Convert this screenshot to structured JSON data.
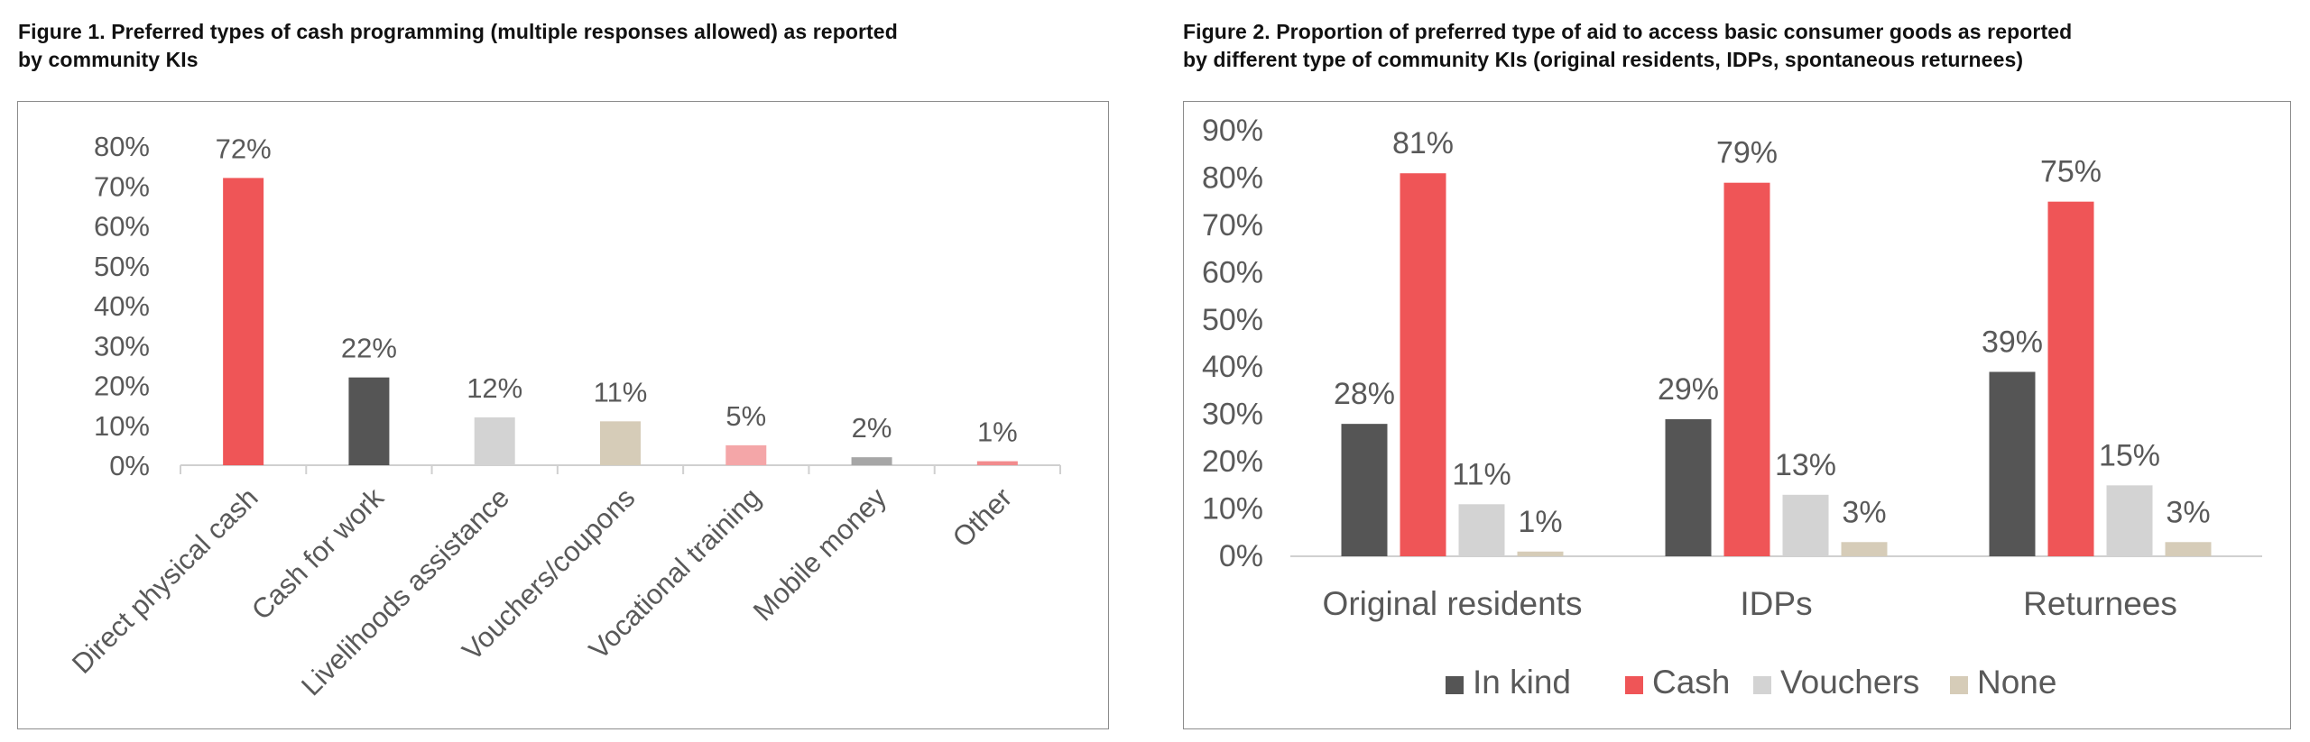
{
  "figures": [
    {
      "title_line1": "Figure 1. Preferred types of cash programming (multiple responses allowed) as reported",
      "title_line2": "by community KIs"
    },
    {
      "title_line1": "Figure 2.  Proportion of preferred type of aid to access basic consumer goods as reported",
      "title_line2": "by different type of community KIs (original residents, IDPs, spontaneous returnees)"
    }
  ],
  "chart_data": [
    {
      "type": "bar",
      "categories": [
        "Direct physical cash",
        "Cash for work",
        "Livelihoods assistance",
        "Vouchers/coupons",
        "Vocational training",
        "Mobile money",
        "Other"
      ],
      "values": [
        72,
        22,
        12,
        11,
        5,
        2,
        1
      ],
      "data_labels": [
        "72%",
        "22%",
        "12%",
        "11%",
        "5%",
        "2%",
        "1%"
      ],
      "bar_colors": [
        "#ef5557",
        "#555555",
        "#d3d3d3",
        "#d6ccb8",
        "#f4a6a8",
        "#a6a6a6",
        "#f28b8d"
      ],
      "ylim": [
        0,
        80
      ],
      "yticks": [
        "0%",
        "10%",
        "20%",
        "30%",
        "40%",
        "50%",
        "60%",
        "70%",
        "80%"
      ],
      "grid": false,
      "legend": "none"
    },
    {
      "type": "bar",
      "categories": [
        "Original residents",
        "IDPs",
        "Returnees"
      ],
      "series": [
        {
          "name": "In kind",
          "color": "#555555",
          "values": [
            28,
            29,
            39
          ],
          "labels": [
            "28%",
            "29%",
            "39%"
          ]
        },
        {
          "name": "Cash",
          "color": "#ef5557",
          "values": [
            81,
            79,
            75
          ],
          "labels": [
            "81%",
            "79%",
            "75%"
          ]
        },
        {
          "name": "Vouchers",
          "color": "#d3d3d3",
          "values": [
            11,
            13,
            15
          ],
          "labels": [
            "11%",
            "13%",
            "15%"
          ]
        },
        {
          "name": "None",
          "color": "#d6ccb8",
          "values": [
            1,
            3,
            3
          ],
          "labels": [
            "1%",
            "3%",
            "3%"
          ]
        }
      ],
      "ylim": [
        0,
        90
      ],
      "yticks": [
        "0%",
        "10%",
        "20%",
        "30%",
        "40%",
        "50%",
        "60%",
        "70%",
        "80%",
        "90%"
      ],
      "grid": false,
      "legend": "bottom"
    }
  ]
}
